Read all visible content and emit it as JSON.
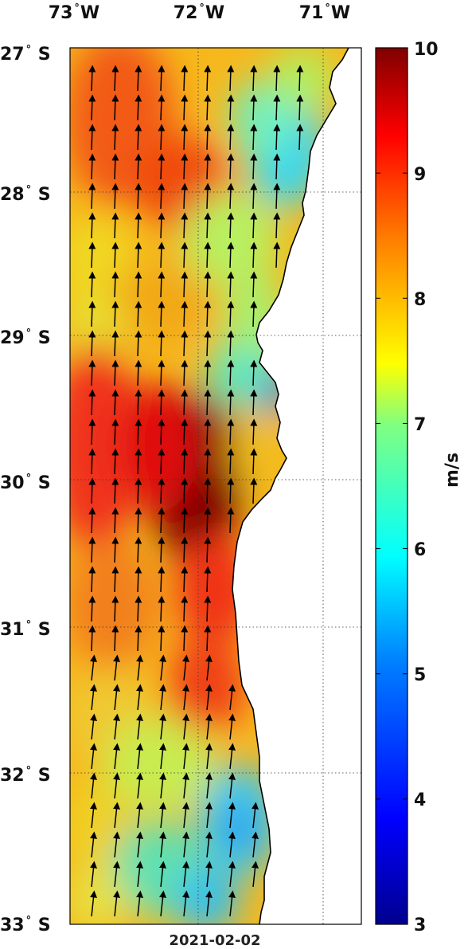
{
  "map": {
    "lon_labels": [
      {
        "value": "73",
        "hemi": "W",
        "lon": -73
      },
      {
        "value": "72",
        "hemi": "W",
        "lon": -72
      },
      {
        "value": "71",
        "hemi": "W",
        "lon": -71
      }
    ],
    "lat_labels": [
      {
        "value": "27",
        "hemi": "S",
        "lat": -27
      },
      {
        "value": "28",
        "hemi": "S",
        "lat": -28
      },
      {
        "value": "29",
        "hemi": "S",
        "lat": -29
      },
      {
        "value": "30",
        "hemi": "S",
        "lat": -30
      },
      {
        "value": "31",
        "hemi": "S",
        "lat": -31
      },
      {
        "value": "32",
        "hemi": "S",
        "lat": -32
      },
      {
        "value": "33",
        "hemi": "S",
        "lat": -33
      }
    ],
    "lon_range": [
      -73.0,
      -70.7
    ],
    "lat_range": [
      -33.0,
      -27.0
    ],
    "date": "2021-02-02",
    "field": "wind speed",
    "vectors": "wind direction arrows, predominantly northward (southerly wind)",
    "land_color": "#ffffff",
    "grid": "dotted"
  },
  "colorbar": {
    "ticks": [
      "10",
      "9",
      "8",
      "7",
      "6",
      "5",
      "4",
      "3"
    ],
    "range": [
      3,
      10
    ],
    "unit": "m/s",
    "colormap": "jet"
  }
}
